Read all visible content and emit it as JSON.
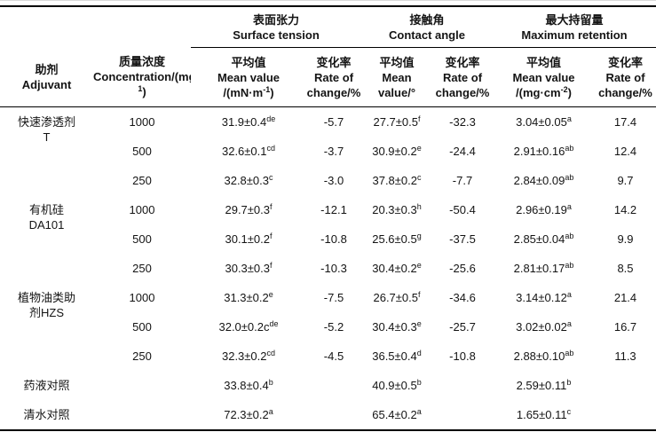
{
  "page": {
    "background_color": "#ffffff",
    "text_color": "#141414",
    "rule_color": "#000000"
  },
  "table": {
    "header": {
      "adjuvant": [
        "助剂",
        "Adjuvant"
      ],
      "concentration": [
        "质量浓度",
        "Concentration/(mg·L^{-1})"
      ],
      "groups": [
        {
          "lines": [
            "表面张力",
            "Surface tension"
          ]
        },
        {
          "lines": [
            "接触角",
            "Contact angle"
          ]
        },
        {
          "lines": [
            "最大持留量",
            "Maximum retention"
          ]
        }
      ],
      "subheaders": [
        [
          "平均值",
          "Mean value",
          "/(mN·m^{-1})"
        ],
        [
          "变化率",
          "Rate of",
          "change/%"
        ],
        [
          "平均值",
          "Mean",
          "value/°"
        ],
        [
          "变化率",
          "Rate of",
          "change/%"
        ],
        [
          "平均值",
          "Mean value",
          "/(mg·cm^{-2})"
        ],
        [
          "变化率",
          "Rate of",
          "change/%"
        ]
      ]
    },
    "groups": [
      {
        "adjuvant_lines": [
          "快速渗透剂",
          "T"
        ],
        "rows": [
          {
            "concentration": "1000",
            "st_mean": "31.9±0.4^{de}",
            "st_rate": "-5.7",
            "ca_mean": "27.7±0.5^{f}",
            "ca_rate": "-32.3",
            "mr_mean": "3.04±0.05^{a}",
            "mr_rate": "17.4"
          },
          {
            "concentration": "500",
            "st_mean": "32.6±0.1^{cd}",
            "st_rate": "-3.7",
            "ca_mean": "30.9±0.2^{e}",
            "ca_rate": "-24.4",
            "mr_mean": "2.91±0.16^{ab}",
            "mr_rate": "12.4"
          },
          {
            "concentration": "250",
            "st_mean": "32.8±0.3^{c}",
            "st_rate": "-3.0",
            "ca_mean": "37.8±0.2^{c}",
            "ca_rate": "-7.7",
            "mr_mean": "2.84±0.09^{ab}",
            "mr_rate": "9.7"
          }
        ]
      },
      {
        "adjuvant_lines": [
          "有机硅",
          "DA101"
        ],
        "rows": [
          {
            "concentration": "1000",
            "st_mean": "29.7±0.3^{f}",
            "st_rate": "-12.1",
            "ca_mean": "20.3±0.3^{h}",
            "ca_rate": "-50.4",
            "mr_mean": "2.96±0.19^{a}",
            "mr_rate": "14.2"
          },
          {
            "concentration": "500",
            "st_mean": "30.1±0.2^{f}",
            "st_rate": "-10.8",
            "ca_mean": "25.6±0.5^{g}",
            "ca_rate": "-37.5",
            "mr_mean": "2.85±0.04^{ab}",
            "mr_rate": "9.9"
          },
          {
            "concentration": "250",
            "st_mean": "30.3±0.3^{f}",
            "st_rate": "-10.3",
            "ca_mean": "30.4±0.2^{e}",
            "ca_rate": "-25.6",
            "mr_mean": "2.81±0.17^{ab}",
            "mr_rate": "8.5"
          }
        ]
      },
      {
        "adjuvant_lines": [
          "植物油类助",
          "剂HZS"
        ],
        "rows": [
          {
            "concentration": "1000",
            "st_mean": "31.3±0.2^{e}",
            "st_rate": "-7.5",
            "ca_mean": "26.7±0.5^{f}",
            "ca_rate": "-34.6",
            "mr_mean": "3.14±0.12^{a}",
            "mr_rate": "21.4"
          },
          {
            "concentration": "500",
            "st_mean": "32.0±0.2c^{de}",
            "st_rate": "-5.2",
            "ca_mean": "30.4±0.3^{e}",
            "ca_rate": "-25.7",
            "mr_mean": "3.02±0.02^{a}",
            "mr_rate": "16.7"
          },
          {
            "concentration": "250",
            "st_mean": "32.3±0.2^{cd}",
            "st_rate": "-4.5",
            "ca_mean": "36.5±0.4^{d}",
            "ca_rate": "-10.8",
            "mr_mean": "2.88±0.10^{ab}",
            "mr_rate": "11.3"
          }
        ]
      }
    ],
    "controls": [
      {
        "name": "药液对照",
        "st_mean": "33.8±0.4^{b}",
        "ca_mean": "40.9±0.5^{b}",
        "mr_mean": "2.59±0.11^{b}"
      },
      {
        "name": "清水对照",
        "st_mean": "72.3±0.2^{a}",
        "ca_mean": "65.4±0.2^{a}",
        "mr_mean": "1.65±0.11^{c}"
      }
    ]
  }
}
